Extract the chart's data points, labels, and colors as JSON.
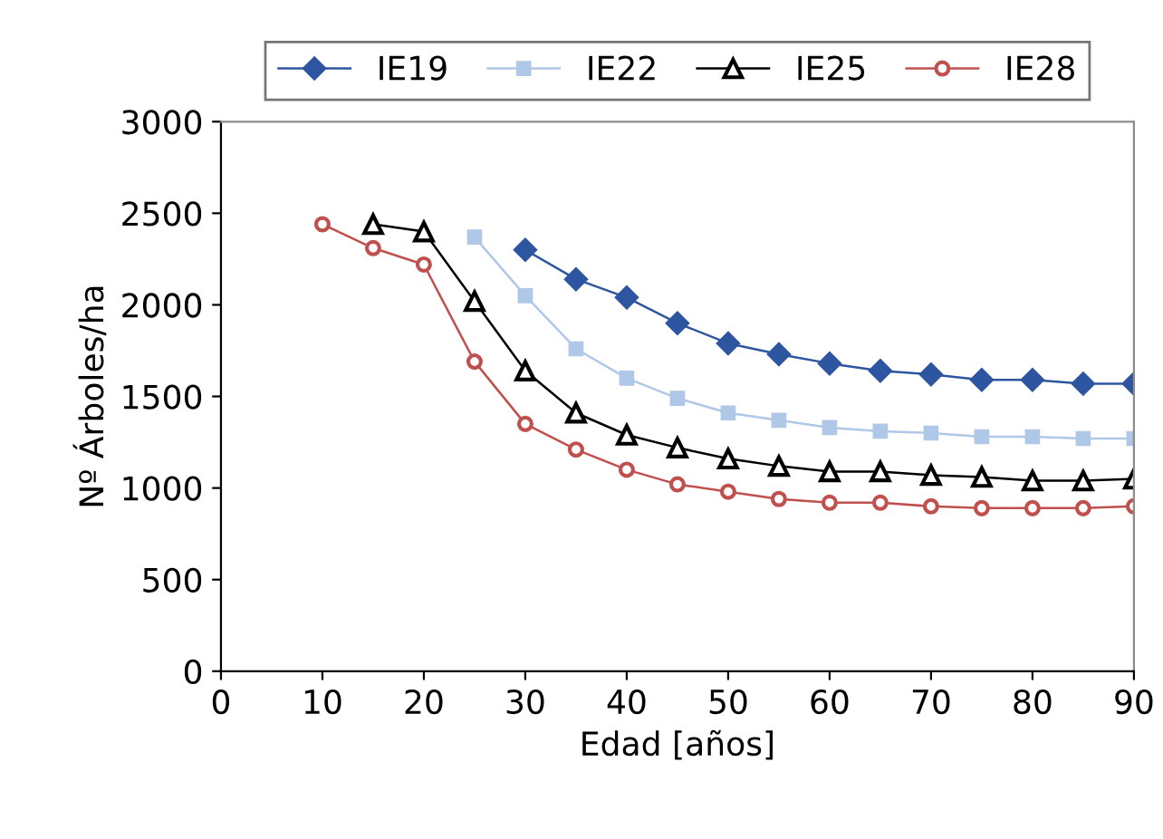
{
  "chart_data": {
    "type": "line",
    "xlabel": "Edad [años]",
    "ylabel": "Nº Árboles/ha",
    "x": [
      10,
      15,
      20,
      25,
      30,
      35,
      40,
      45,
      50,
      55,
      60,
      65,
      70,
      75,
      80,
      85,
      90
    ],
    "series": [
      {
        "name": "IE19",
        "color": "#2e55a0",
        "marker": "diamond",
        "values": [
          null,
          null,
          null,
          null,
          2300,
          2140,
          2040,
          1900,
          1790,
          1730,
          1680,
          1640,
          1620,
          1590,
          1590,
          1570,
          1570
        ]
      },
      {
        "name": "IE22",
        "color": "#b0c8e8",
        "marker": "square",
        "values": [
          null,
          null,
          null,
          2370,
          2050,
          1760,
          1600,
          1490,
          1410,
          1370,
          1330,
          1310,
          1300,
          1280,
          1280,
          1270,
          1270
        ]
      },
      {
        "name": "IE25",
        "color": "#000000",
        "marker": "triangle",
        "values": [
          null,
          2440,
          2400,
          2020,
          1640,
          1410,
          1290,
          1220,
          1160,
          1120,
          1090,
          1090,
          1070,
          1060,
          1040,
          1040,
          1050
        ]
      },
      {
        "name": "IE28",
        "color": "#c0504d",
        "marker": "circle",
        "values": [
          2440,
          2310,
          2220,
          1690,
          1350,
          1210,
          1100,
          1020,
          980,
          940,
          920,
          920,
          900,
          890,
          890,
          890,
          900
        ]
      }
    ],
    "xlim": [
      0,
      90
    ],
    "xticks": [
      0,
      10,
      20,
      30,
      40,
      50,
      60,
      70,
      80,
      90
    ],
    "ylim": [
      0,
      3000
    ],
    "yticks": [
      0,
      500,
      1000,
      1500,
      2000,
      2500,
      3000
    ],
    "grid": false,
    "legend": "top"
  }
}
